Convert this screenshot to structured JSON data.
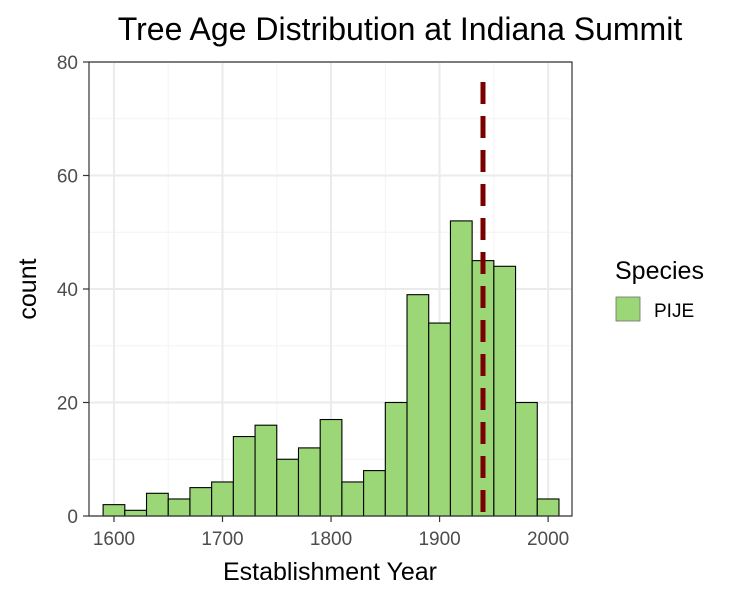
{
  "chart_data": {
    "type": "bar",
    "title": "Tree Age Distribution at Indiana Summit",
    "xlabel": "Establishment Year",
    "ylabel": "count",
    "xlim": [
      1577,
      2022
    ],
    "ylim": [
      0,
      80
    ],
    "x_ticks": [
      1600,
      1700,
      1800,
      1900,
      2000
    ],
    "y_ticks": [
      0,
      20,
      40,
      60,
      80
    ],
    "bin_width": 20,
    "bins": [
      {
        "x": 1600,
        "count": 2
      },
      {
        "x": 1620,
        "count": 1
      },
      {
        "x": 1640,
        "count": 4
      },
      {
        "x": 1660,
        "count": 3
      },
      {
        "x": 1680,
        "count": 5
      },
      {
        "x": 1700,
        "count": 6
      },
      {
        "x": 1720,
        "count": 14
      },
      {
        "x": 1740,
        "count": 16
      },
      {
        "x": 1760,
        "count": 10
      },
      {
        "x": 1780,
        "count": 12
      },
      {
        "x": 1800,
        "count": 17
      },
      {
        "x": 1820,
        "count": 6
      },
      {
        "x": 1840,
        "count": 8
      },
      {
        "x": 1860,
        "count": 20
      },
      {
        "x": 1880,
        "count": 39
      },
      {
        "x": 1900,
        "count": 34
      },
      {
        "x": 1920,
        "count": 52
      },
      {
        "x": 1940,
        "count": 45
      },
      {
        "x": 1960,
        "count": 44
      },
      {
        "x": 1980,
        "count": 20
      },
      {
        "x": 2000,
        "count": 3
      }
    ],
    "vline": {
      "x": 1940,
      "color": "#7a0000",
      "style": "dashed"
    },
    "grid": true,
    "legend": {
      "title": "Species",
      "placement": "right",
      "entries": [
        {
          "label": "PIJE",
          "color": "#9cd777"
        }
      ]
    },
    "colors": {
      "bar_fill": "#9cd777",
      "bar_stroke": "#000000",
      "panel_border": "#333333",
      "grid_major": "#ebebeb",
      "grid_minor": "#f4f4f4"
    }
  }
}
